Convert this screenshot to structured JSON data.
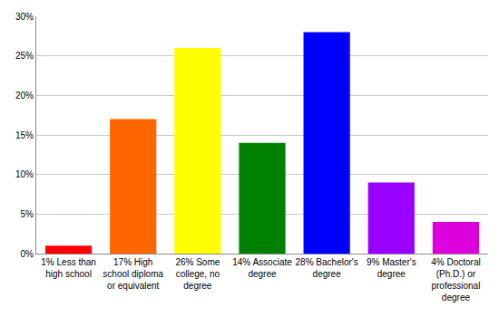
{
  "chart_data": {
    "type": "bar",
    "categories": [
      "1% Less than high school",
      "17% High school diploma or equivalent",
      "26% Some college, no degree",
      "14% Associate degree",
      "28% Bachelor's degree",
      "9% Master's degree",
      "4% Doctoral (Ph.D.) or professional degree"
    ],
    "values": [
      1,
      17,
      26,
      14,
      28,
      9,
      4
    ],
    "colors": [
      "#ff0000",
      "#ff6600",
      "#ffff00",
      "#008000",
      "#0000ff",
      "#9900ff",
      "#dd00dd"
    ],
    "ylim": [
      0,
      30
    ],
    "yticks": [
      {
        "value": 0,
        "label": "0%"
      },
      {
        "value": 5,
        "label": "5%"
      },
      {
        "value": 10,
        "label": "10%"
      },
      {
        "value": 15,
        "label": "15%"
      },
      {
        "value": 20,
        "label": "20%"
      },
      {
        "value": 25,
        "label": "25%"
      },
      {
        "value": 30,
        "label": "30%"
      }
    ],
    "grid": true
  }
}
